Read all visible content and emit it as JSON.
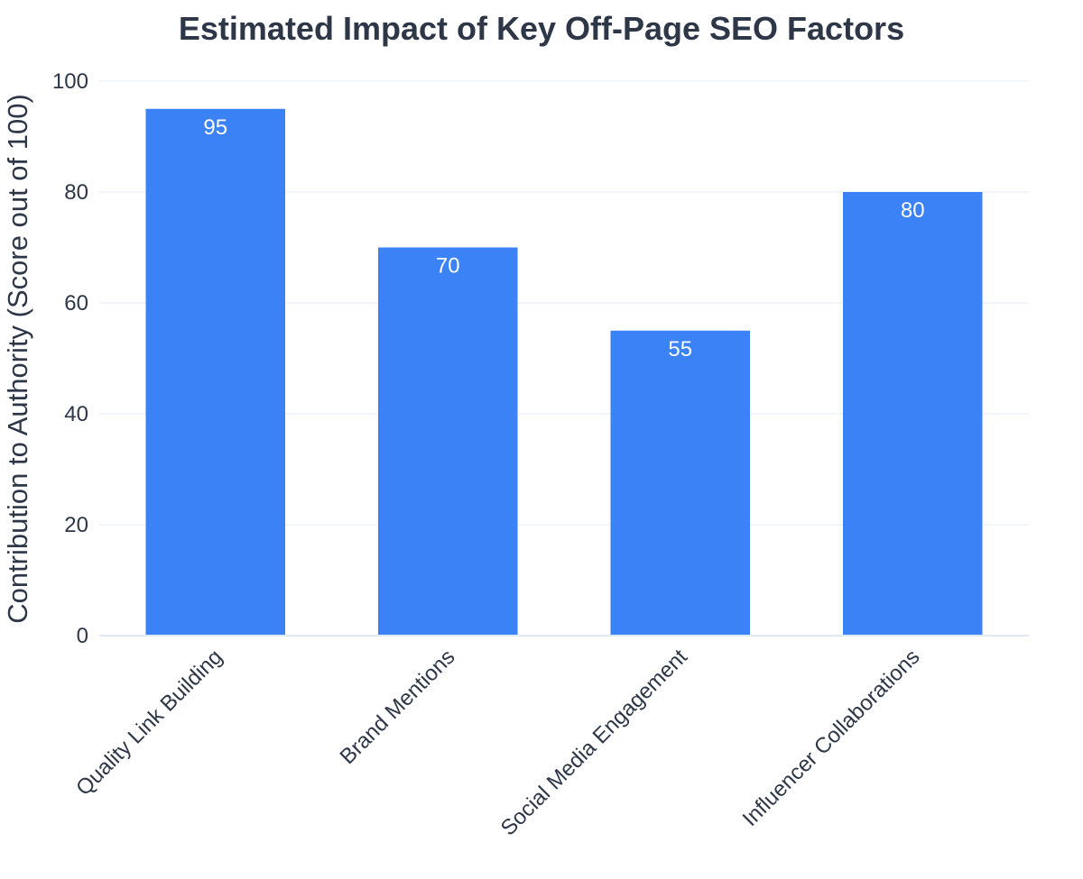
{
  "chart_data": {
    "type": "bar",
    "title": "Estimated Impact of Key Off-Page SEO Factors",
    "xlabel": "",
    "ylabel": "Contribution to Authority (Score out of 100)",
    "categories": [
      "Quality Link Building",
      "Brand Mentions",
      "Social Media Engagement",
      "Influencer Collaborations"
    ],
    "values": [
      95,
      70,
      55,
      80
    ],
    "data_labels": [
      "95",
      "70",
      "55",
      "80"
    ],
    "ylim": [
      0,
      100
    ],
    "yticks": [
      0,
      20,
      40,
      60,
      80,
      100
    ],
    "ytick_labels": [
      "0",
      "20",
      "40",
      "60",
      "80",
      "100"
    ],
    "grid": true,
    "legend": "none"
  },
  "colors": {
    "bar": "#3b82f6",
    "text": "#2d3748",
    "grid": "#eef2f7",
    "axis_line": "#e2e8f0",
    "background": "#ffffff"
  }
}
